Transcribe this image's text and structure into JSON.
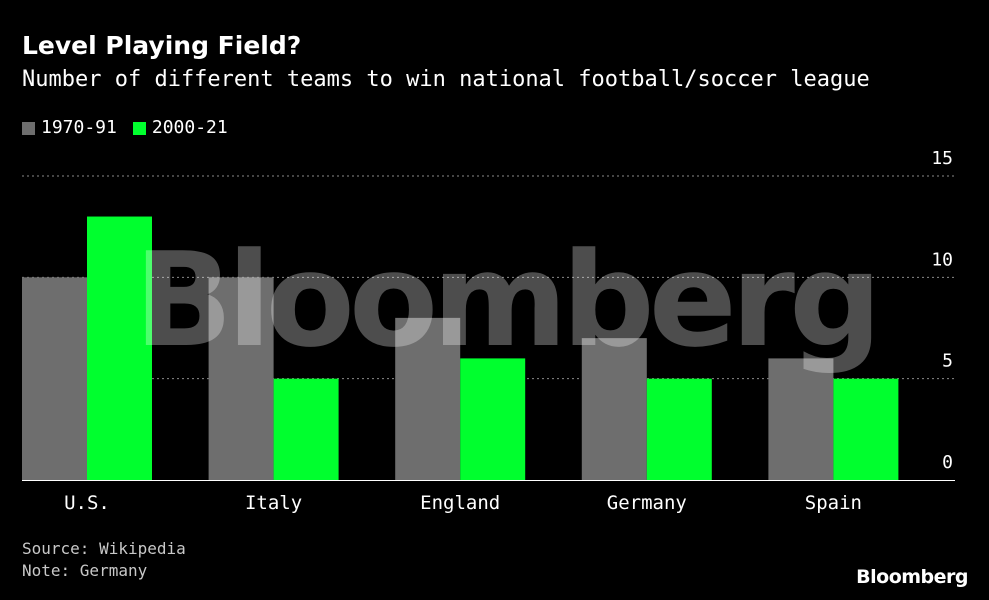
{
  "title": "Level Playing Field?",
  "subtitle": "Number of different teams to win national football/soccer league",
  "legend": [
    {
      "label": "1970-91",
      "color": "#6e6e6e"
    },
    {
      "label": "2000-21",
      "color": "#00ff2e"
    }
  ],
  "watermark": "Bloomberg",
  "footer": {
    "source": "Source: Wikipedia",
    "note": "Note: Germany"
  },
  "brand": "Bloomberg",
  "chart_data": {
    "type": "bar",
    "categories": [
      "U.S.",
      "Italy",
      "England",
      "Germany",
      "Spain"
    ],
    "series": [
      {
        "name": "1970-91",
        "color": "#6e6e6e",
        "values": [
          10,
          10,
          8,
          7,
          6
        ]
      },
      {
        "name": "2000-21",
        "color": "#00ff2e",
        "values": [
          13,
          5,
          6,
          5,
          5
        ]
      }
    ],
    "ylim": [
      0,
      15
    ],
    "yticks": [
      0,
      5,
      10,
      15
    ],
    "grid": true,
    "axis_side": "right",
    "legend_position": "top-left"
  }
}
